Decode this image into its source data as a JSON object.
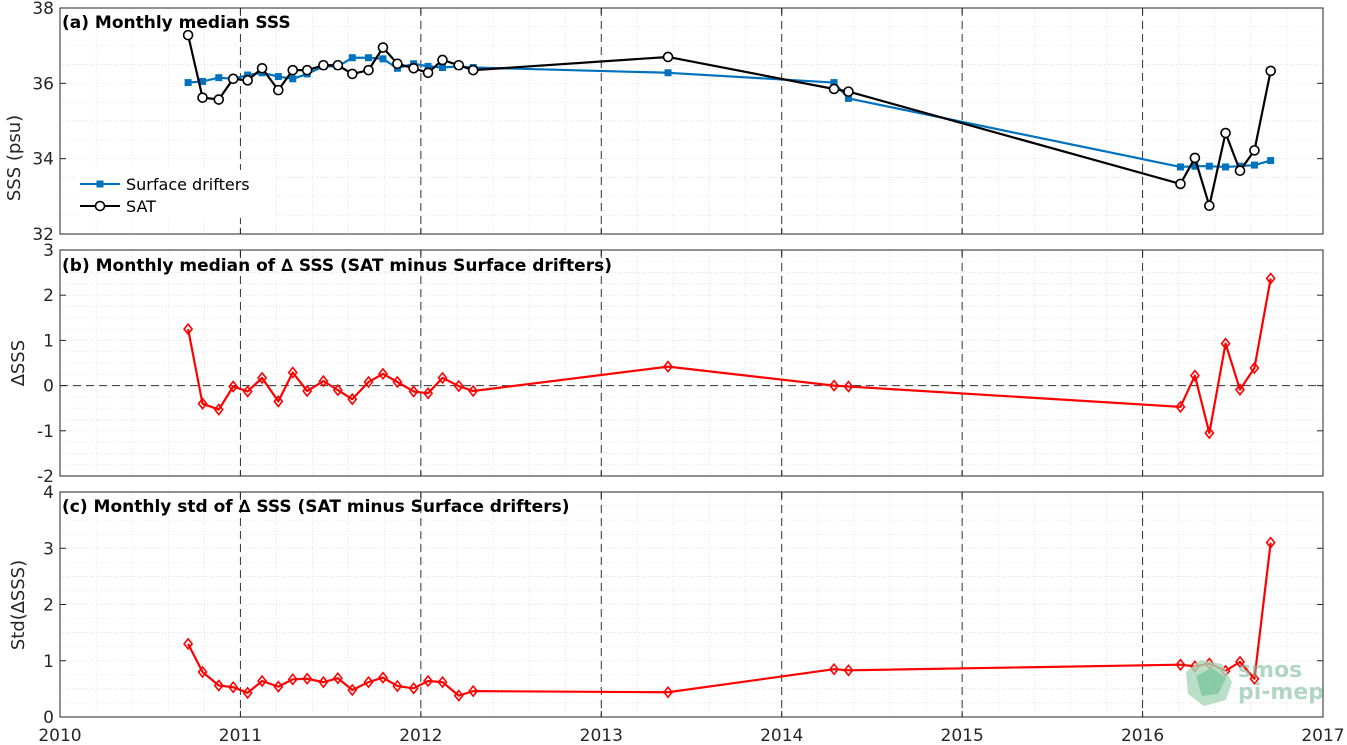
{
  "colors": {
    "drifters": "#0072bd",
    "sat": "#000000",
    "delta": "#ff0000",
    "logo": "#7dbd9a"
  },
  "logo": {
    "line1": "smos",
    "line2": "pi-mep"
  },
  "xaxis": {
    "ticks": [
      "2010",
      "2011",
      "2012",
      "2013",
      "2014",
      "2015",
      "2016",
      "2017"
    ],
    "xlim": [
      2010,
      2017
    ]
  },
  "chart_data": [
    {
      "type": "line",
      "title": "(a) Monthly median SSS",
      "ylabel": "SSS (psu)",
      "ylim": [
        32,
        38
      ],
      "yticks": [
        "32",
        "34",
        "36",
        "38"
      ],
      "grid": "minor dotted, yearly dashed verticals",
      "legend_position": "lower-left",
      "series": [
        {
          "name": "Surface drifters",
          "marker": "square",
          "x": [
            2010.71,
            2010.79,
            2010.88,
            2010.96,
            2011.04,
            2011.12,
            2011.21,
            2011.29,
            2011.37,
            2011.46,
            2011.54,
            2011.62,
            2011.71,
            2011.79,
            2011.87,
            2011.96,
            2012.04,
            2012.12,
            2012.21,
            2012.29,
            2013.37,
            2014.29,
            2014.37,
            2016.21,
            2016.29,
            2016.37,
            2016.46,
            2016.54,
            2016.62,
            2016.71
          ],
          "y": [
            36.02,
            36.05,
            36.15,
            36.12,
            36.22,
            36.28,
            36.18,
            36.12,
            36.25,
            36.45,
            36.45,
            36.68,
            36.68,
            36.65,
            36.4,
            36.52,
            36.45,
            36.42,
            36.45,
            36.42,
            36.28,
            36.02,
            35.6,
            33.78,
            33.8,
            33.8,
            33.78,
            33.8,
            33.83,
            33.95
          ]
        },
        {
          "name": "SAT",
          "marker": "circle",
          "x": [
            2010.71,
            2010.79,
            2010.88,
            2010.96,
            2011.04,
            2011.12,
            2011.21,
            2011.29,
            2011.37,
            2011.46,
            2011.54,
            2011.62,
            2011.71,
            2011.79,
            2011.87,
            2011.96,
            2012.04,
            2012.12,
            2012.21,
            2012.29,
            2013.37,
            2014.29,
            2014.37,
            2016.21,
            2016.29,
            2016.37,
            2016.46,
            2016.54,
            2016.62,
            2016.71
          ],
          "y": [
            37.28,
            35.62,
            35.57,
            36.12,
            36.08,
            36.4,
            35.82,
            36.35,
            36.35,
            36.48,
            36.48,
            36.25,
            36.35,
            36.95,
            36.52,
            36.4,
            36.28,
            36.62,
            36.48,
            36.35,
            36.7,
            35.85,
            35.78,
            33.33,
            34.02,
            32.75,
            34.68,
            33.68,
            34.22,
            36.33
          ]
        }
      ]
    },
    {
      "type": "line",
      "title": "(b) Monthly median of ∆ SSS (SAT minus Surface drifters)",
      "ylabel": "∆SSS",
      "ylim": [
        -2,
        3
      ],
      "yticks": [
        "-2",
        "-1",
        "0",
        "1",
        "2",
        "3"
      ],
      "zero_line": "dashed",
      "series": [
        {
          "marker": "diamond",
          "x": [
            2010.71,
            2010.79,
            2010.88,
            2010.96,
            2011.04,
            2011.12,
            2011.21,
            2011.29,
            2011.37,
            2011.46,
            2011.54,
            2011.62,
            2011.71,
            2011.79,
            2011.87,
            2011.96,
            2012.04,
            2012.12,
            2012.21,
            2012.29,
            2013.37,
            2014.29,
            2014.37,
            2016.21,
            2016.29,
            2016.37,
            2016.46,
            2016.54,
            2016.62,
            2016.71
          ],
          "y": [
            1.25,
            -0.4,
            -0.53,
            -0.02,
            -0.13,
            0.17,
            -0.35,
            0.29,
            -0.12,
            0.1,
            -0.1,
            -0.3,
            0.08,
            0.26,
            0.08,
            -0.13,
            -0.17,
            0.17,
            -0.01,
            -0.12,
            0.42,
            0.0,
            -0.02,
            -0.47,
            0.22,
            -1.05,
            0.93,
            -0.09,
            0.39,
            2.37
          ]
        }
      ]
    },
    {
      "type": "line",
      "title": "(c) Monthly std of ∆ SSS (SAT minus Surface drifters)",
      "ylabel": "Std(∆SSS)",
      "ylim": [
        0,
        4
      ],
      "yticks": [
        "0",
        "1",
        "2",
        "3",
        "4"
      ],
      "series": [
        {
          "marker": "diamond",
          "x": [
            2010.71,
            2010.79,
            2010.88,
            2010.96,
            2011.04,
            2011.12,
            2011.21,
            2011.29,
            2011.37,
            2011.46,
            2011.54,
            2011.62,
            2011.71,
            2011.79,
            2011.87,
            2011.96,
            2012.04,
            2012.12,
            2012.21,
            2012.29,
            2013.37,
            2014.29,
            2014.37,
            2016.21,
            2016.29,
            2016.37,
            2016.46,
            2016.54,
            2016.62,
            2016.71
          ],
          "y": [
            1.3,
            0.8,
            0.56,
            0.53,
            0.43,
            0.64,
            0.54,
            0.67,
            0.68,
            0.62,
            0.69,
            0.48,
            0.62,
            0.7,
            0.55,
            0.51,
            0.64,
            0.62,
            0.38,
            0.46,
            0.44,
            0.85,
            0.83,
            0.93,
            0.9,
            0.95,
            0.82,
            0.98,
            0.68,
            3.1
          ]
        }
      ]
    }
  ]
}
